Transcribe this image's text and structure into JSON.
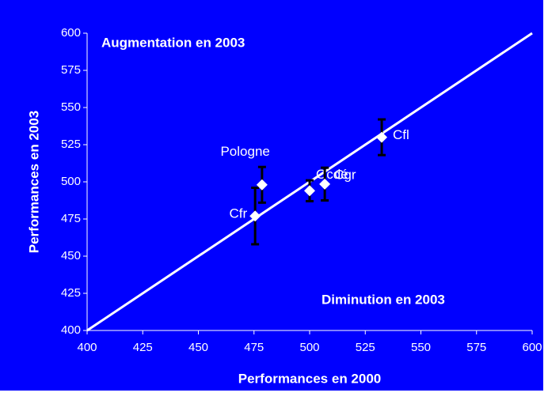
{
  "chart_data": {
    "type": "scatter",
    "x_label": "Performances en 2000",
    "y_label": "Performances en 2003",
    "annotations": [
      "Augmentation en 2003",
      "Diminution en 2003"
    ],
    "labels": [
      "Cfr",
      "Pologne",
      "Ocdé",
      "Cgr",
      "Cfl"
    ],
    "x": [
      475.5,
      478.6,
      500,
      506.8,
      532.4
    ],
    "values": [
      477,
      498,
      494,
      498.5,
      530
    ],
    "errors": [
      19,
      12,
      7,
      11,
      12
    ],
    "xlim": [
      400,
      600
    ],
    "ylim": [
      400,
      600
    ],
    "xticks": [
      400,
      425,
      450,
      475,
      500,
      525,
      550,
      575,
      600
    ],
    "yticks": [
      400,
      425,
      450,
      475,
      500,
      525,
      550,
      575,
      600
    ],
    "color": "#ffffff",
    "background": "#0000ff"
  }
}
